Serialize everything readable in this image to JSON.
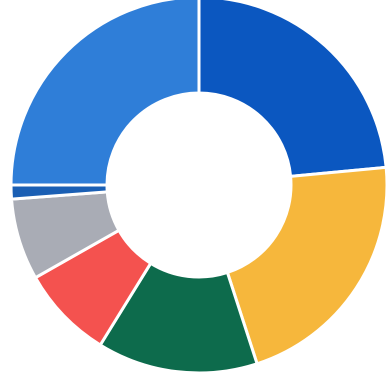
{
  "chart_data": {
    "type": "pie",
    "variant": "donut",
    "title": "",
    "legend": "none",
    "slices": [
      {
        "value": 23.5,
        "color": "#0b57c0"
      },
      {
        "value": 21.5,
        "color": "#f6b73c"
      },
      {
        "value": 13.8,
        "color": "#0d6b4c"
      },
      {
        "value": 8.0,
        "color": "#f4524f"
      },
      {
        "value": 7.0,
        "color": "#a9acb5"
      },
      {
        "value": 1.2,
        "color": "#1a5fb4"
      },
      {
        "value": 25.0,
        "color": "#2f7ed8"
      }
    ],
    "start_angle_deg": 0,
    "direction": "clockwise",
    "separator_color": "#ffffff"
  }
}
